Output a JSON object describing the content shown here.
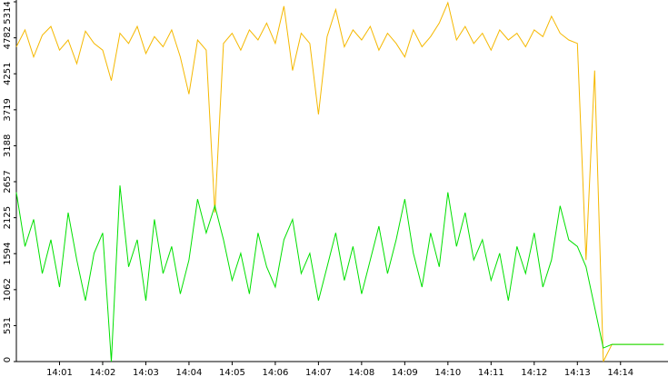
{
  "chart_data": {
    "type": "line",
    "x": [
      840.0,
      840.2,
      840.4,
      840.6,
      840.8,
      841.0,
      841.2,
      841.4,
      841.6,
      841.8,
      842.0,
      842.2,
      842.4,
      842.6,
      842.8,
      843.0,
      843.2,
      843.4,
      843.6,
      843.8,
      844.0,
      844.2,
      844.4,
      844.6,
      844.8,
      845.0,
      845.2,
      845.4,
      845.6,
      845.8,
      846.0,
      846.2,
      846.4,
      846.6,
      846.8,
      847.0,
      847.2,
      847.4,
      847.6,
      847.8,
      848.0,
      848.2,
      848.4,
      848.6,
      848.8,
      849.0,
      849.2,
      849.4,
      849.6,
      849.8,
      850.0,
      850.2,
      850.4,
      850.6,
      850.8,
      851.0,
      851.2,
      851.4,
      851.6,
      851.8,
      852.0,
      852.2,
      852.4,
      852.6,
      852.8,
      853.0,
      853.2,
      853.4,
      853.6,
      853.8,
      854.0,
      854.2,
      854.4,
      854.6,
      854.8,
      855.0
    ],
    "series": [
      {
        "color": "#f5b800",
        "values": [
          4650,
          4900,
          4500,
          4820,
          4950,
          4600,
          4750,
          4400,
          4880,
          4700,
          4600,
          4150,
          4850,
          4700,
          4950,
          4550,
          4800,
          4650,
          4900,
          4500,
          3950,
          4750,
          4600,
          2200,
          4700,
          4850,
          4600,
          4900,
          4750,
          5000,
          4700,
          5250,
          4300,
          4850,
          4700,
          3650,
          4800,
          5200,
          4650,
          4900,
          4750,
          4950,
          4600,
          4850,
          4700,
          4500,
          4900,
          4650,
          4800,
          5000,
          5300,
          4750,
          4950,
          4700,
          4850,
          4600,
          4900,
          4750,
          4850,
          4650,
          4900,
          4800,
          5100,
          4850,
          4750,
          4700,
          1500,
          4300,
          0,
          254,
          254,
          254,
          254,
          254,
          254,
          254
        ]
      },
      {
        "color": "#00e000",
        "values": [
          2500,
          1700,
          2100,
          1300,
          1800,
          1100,
          2200,
          1500,
          900,
          1600,
          1900,
          0,
          2600,
          1400,
          1800,
          900,
          2100,
          1300,
          1700,
          1000,
          1500,
          2400,
          1900,
          2300,
          1800,
          1200,
          1600,
          1000,
          1900,
          1400,
          1100,
          1800,
          2100,
          1300,
          1600,
          900,
          1400,
          1900,
          1200,
          1700,
          1000,
          1500,
          2000,
          1300,
          1800,
          2400,
          1600,
          1100,
          1900,
          1400,
          2500,
          1700,
          2200,
          1500,
          1800,
          1200,
          1600,
          900,
          1700,
          1300,
          1900,
          1100,
          1500,
          2300,
          1800,
          1700,
          1400,
          800,
          200,
          254,
          254,
          254,
          254,
          254,
          254,
          254
        ]
      }
    ],
    "xlim": [
      840,
      855.1
    ],
    "xticks": [
      {
        "value": 841,
        "label": "14:01"
      },
      {
        "value": 842,
        "label": "14:02"
      },
      {
        "value": 843,
        "label": "14:03"
      },
      {
        "value": 844,
        "label": "14:04"
      },
      {
        "value": 845,
        "label": "14:05"
      },
      {
        "value": 846,
        "label": "14:06"
      },
      {
        "value": 847,
        "label": "14:07"
      },
      {
        "value": 848,
        "label": "14:08"
      },
      {
        "value": 849,
        "label": "14:09"
      },
      {
        "value": 850,
        "label": "14:10"
      },
      {
        "value": 851,
        "label": "14:11"
      },
      {
        "value": 852,
        "label": "14:12"
      },
      {
        "value": 853,
        "label": "14:13"
      },
      {
        "value": 854,
        "label": "14:14"
      }
    ],
    "ylim": [
      0,
      5314
    ],
    "yticks": [
      0,
      531,
      1062,
      1594,
      2125,
      2657,
      3188,
      3719,
      4251,
      4782,
      5314
    ]
  }
}
